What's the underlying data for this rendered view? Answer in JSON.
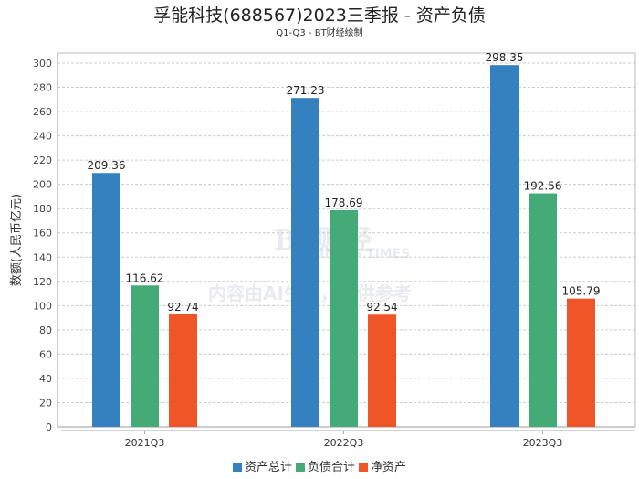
{
  "chart_data": {
    "type": "bar",
    "title": "孚能科技(688567)2023三季报 - 资产负债",
    "subtitle": "Q1-Q3 - BT财经绘制",
    "ylabel": "数额(人民币亿元)",
    "xlabel": "",
    "ylim": [
      0,
      310
    ],
    "yticks": [
      0,
      20,
      40,
      60,
      80,
      100,
      120,
      140,
      160,
      180,
      200,
      220,
      240,
      260,
      280,
      300
    ],
    "grid": true,
    "legend_position": "bottom",
    "categories": [
      "2021Q3",
      "2022Q3",
      "2023Q3"
    ],
    "series": [
      {
        "name": "资产总计",
        "color": "#3581c0",
        "values": [
          209.36,
          271.23,
          298.35
        ]
      },
      {
        "name": "负债合计",
        "color": "#44aa77",
        "values": [
          116.62,
          178.69,
          192.56
        ]
      },
      {
        "name": "净资产",
        "color": "#f05528",
        "values": [
          92.74,
          92.54,
          105.79
        ]
      }
    ]
  },
  "watermark": {
    "logo": "BT财经",
    "logo_sub": "BUSINESS TIMES",
    "notice": "内容由AI生成，仅供参考"
  }
}
